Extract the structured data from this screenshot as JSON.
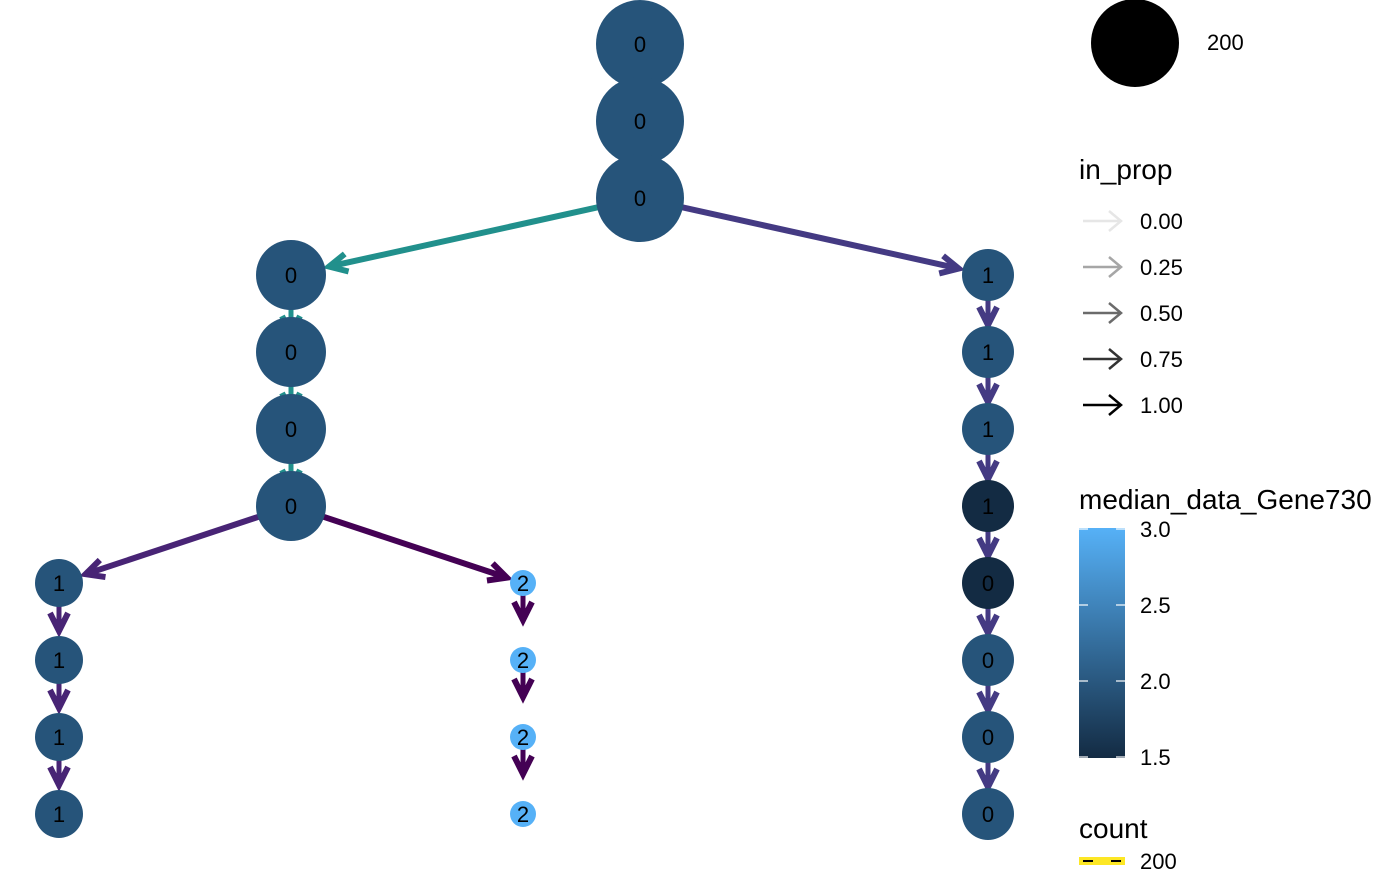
{
  "size_legend": {
    "label": "200"
  },
  "in_prop_legend": {
    "title": "in_prop",
    "labels": [
      "0.00",
      "0.25",
      "0.50",
      "0.75",
      "1.00"
    ],
    "arrow_colors": [
      "#e6e6e6",
      "#a6a6a6",
      "#6b6b6b",
      "#333333",
      "#000000"
    ]
  },
  "color_legend": {
    "title": "median_data_Gene730",
    "ticks": [
      "3.0",
      "2.5",
      "2.0",
      "1.5"
    ],
    "gradient_top": "#56b1f7",
    "gradient_bottom": "#132b43"
  },
  "count_legend": {
    "title": "count",
    "label": "200",
    "color": "#fde725"
  },
  "tree": {
    "nodes": [
      {
        "id": "r1",
        "label": "0",
        "color": "#26547a"
      },
      {
        "id": "r2",
        "label": "0",
        "color": "#26547a"
      },
      {
        "id": "r3",
        "label": "0",
        "color": "#26547a"
      },
      {
        "id": "L1",
        "label": "0",
        "color": "#26547a"
      },
      {
        "id": "L2",
        "label": "0",
        "color": "#26547a"
      },
      {
        "id": "L3",
        "label": "0",
        "color": "#26547a"
      },
      {
        "id": "L4",
        "label": "0",
        "color": "#26547a"
      },
      {
        "id": "LL1",
        "label": "1",
        "color": "#26547a"
      },
      {
        "id": "LL2",
        "label": "1",
        "color": "#26547a"
      },
      {
        "id": "LL3",
        "label": "1",
        "color": "#26547a"
      },
      {
        "id": "LL4",
        "label": "1",
        "color": "#26547a"
      },
      {
        "id": "LR1",
        "label": "2",
        "color": "#56b1f7"
      },
      {
        "id": "LR2",
        "label": "2",
        "color": "#56b1f7"
      },
      {
        "id": "LR3",
        "label": "2",
        "color": "#56b1f7"
      },
      {
        "id": "LR4",
        "label": "2",
        "color": "#56b1f7"
      },
      {
        "id": "R1",
        "label": "1",
        "color": "#26547a"
      },
      {
        "id": "R2",
        "label": "1",
        "color": "#26547a"
      },
      {
        "id": "R3",
        "label": "1",
        "color": "#26547a"
      },
      {
        "id": "R4",
        "label": "1",
        "color": "#132b43"
      },
      {
        "id": "R5",
        "label": "0",
        "color": "#132b43"
      },
      {
        "id": "R6",
        "label": "0",
        "color": "#26547a"
      },
      {
        "id": "R7",
        "label": "0",
        "color": "#26547a"
      },
      {
        "id": "R8",
        "label": "0",
        "color": "#26547a"
      }
    ],
    "edges": [
      {
        "from": "r3",
        "to": "L1",
        "color": "#21908c"
      },
      {
        "from": "L1",
        "to": "L2",
        "color": "#21908c"
      },
      {
        "from": "L2",
        "to": "L3",
        "color": "#21908c"
      },
      {
        "from": "L3",
        "to": "L4",
        "color": "#21908c"
      },
      {
        "from": "r3",
        "to": "R1",
        "color": "#443a83"
      },
      {
        "from": "R1",
        "to": "R2",
        "color": "#443a83"
      },
      {
        "from": "R2",
        "to": "R3",
        "color": "#443a83"
      },
      {
        "from": "R3",
        "to": "R4",
        "color": "#443a83"
      },
      {
        "from": "R4",
        "to": "R5",
        "color": "#443a83"
      },
      {
        "from": "R5",
        "to": "R6",
        "color": "#443a83"
      },
      {
        "from": "R6",
        "to": "R7",
        "color": "#443a83"
      },
      {
        "from": "R7",
        "to": "R8",
        "color": "#443a83"
      },
      {
        "from": "L4",
        "to": "LL1",
        "color": "#482475"
      },
      {
        "from": "LL1",
        "to": "LL2",
        "color": "#482475"
      },
      {
        "from": "LL2",
        "to": "LL3",
        "color": "#482475"
      },
      {
        "from": "LL3",
        "to": "LL4",
        "color": "#482475"
      },
      {
        "from": "L4",
        "to": "LR1",
        "color": "#440154"
      },
      {
        "from": "LR1",
        "to": "LR2",
        "color": "#440154"
      },
      {
        "from": "LR2",
        "to": "LR3",
        "color": "#440154"
      },
      {
        "from": "LR3",
        "to": "LR4",
        "color": "#440154"
      }
    ]
  }
}
